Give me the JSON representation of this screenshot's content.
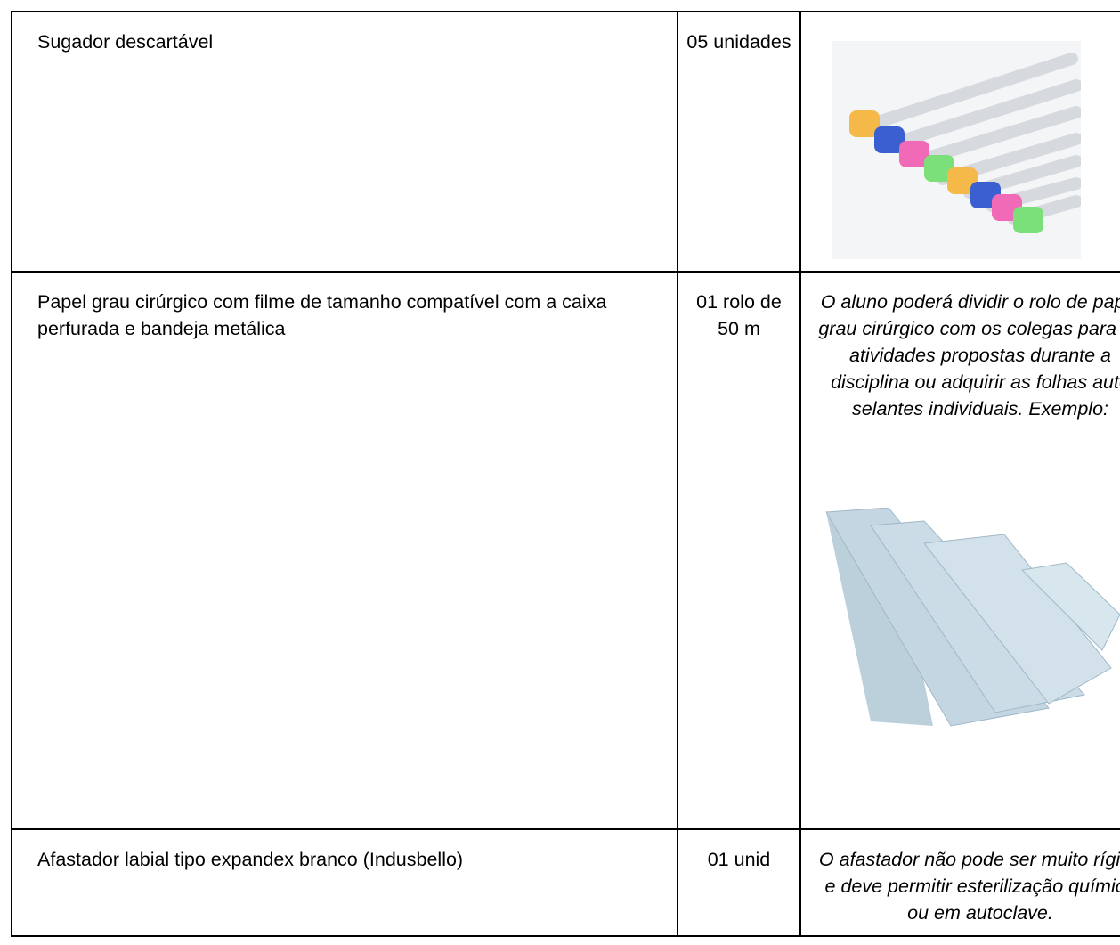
{
  "table": {
    "rows": [
      {
        "item": "Sugador descartável",
        "quantity": "05 unidades"
      },
      {
        "item": "Papel grau cirúrgico com filme de tamanho compatível com a caixa perfurada e bandeja metálica",
        "quantity": "01 rolo de 50 m",
        "note": "O aluno poderá dividir o rolo de papel grau cirúrgico com os colegas para as atividades propostas durante a disciplina ou adquirir as folhas auto selantes individuais. Exemplo:"
      },
      {
        "item": "Afastador labial tipo expandex branco (Indusbello)",
        "quantity": "01 unid",
        "note": "O afastador não pode ser muito rígido e deve permitir esterilização química ou em autoclave."
      }
    ]
  }
}
